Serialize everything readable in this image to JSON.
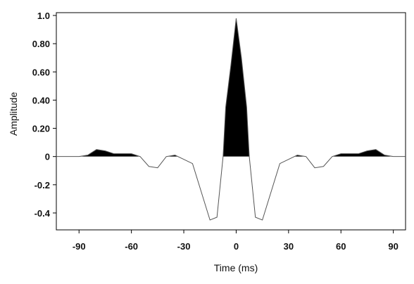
{
  "chart_data": {
    "type": "area",
    "title": "",
    "xlabel": "Time (ms)",
    "ylabel": "Amplitude",
    "xlim": [
      -103,
      97
    ],
    "ylim": [
      -0.47,
      1.0
    ],
    "grid": false,
    "legend": "none",
    "fill_positive": true,
    "x_ticks": [
      -90,
      -60,
      -30,
      0,
      30,
      60,
      90
    ],
    "x_tick_labels": [
      "-90",
      "-60",
      "-30",
      "0",
      "30",
      "60",
      "90"
    ],
    "y_ticks": [
      1.0,
      0.8,
      0.6,
      0.4,
      0.2,
      0,
      -0.2,
      -0.4
    ],
    "y_tick_labels": [
      "1.0",
      "0.80",
      "0.60",
      "0.40",
      "0.20",
      "0",
      "-0.2",
      "-0.4"
    ],
    "series": [
      {
        "line_color": "#555555",
        "fill_color": "#000000",
        "x": [
          -103,
          -90,
          -85,
          -80,
          -75,
          -70,
          -65,
          -60,
          -55,
          -50,
          -45,
          -40,
          -35,
          -30,
          -25,
          -20,
          -15,
          -11,
          -7.5,
          -6,
          -3,
          0,
          3,
          6,
          7.5,
          11,
          15,
          20,
          25,
          30,
          35,
          40,
          45,
          50,
          55,
          60,
          65,
          70,
          75,
          80,
          85,
          90,
          97
        ],
        "y": [
          0,
          0,
          0.01,
          0.05,
          0.04,
          0.02,
          0.02,
          0.02,
          0.0,
          -0.07,
          -0.08,
          0.0,
          0.01,
          -0.02,
          -0.05,
          -0.25,
          -0.45,
          -0.43,
          0.0,
          0.35,
          0.65,
          0.98,
          0.7,
          0.35,
          0.0,
          -0.43,
          -0.45,
          -0.25,
          -0.05,
          -0.02,
          0.01,
          0.0,
          -0.08,
          -0.07,
          0.0,
          0.02,
          0.02,
          0.02,
          0.04,
          0.05,
          0.01,
          0,
          0
        ]
      }
    ]
  }
}
